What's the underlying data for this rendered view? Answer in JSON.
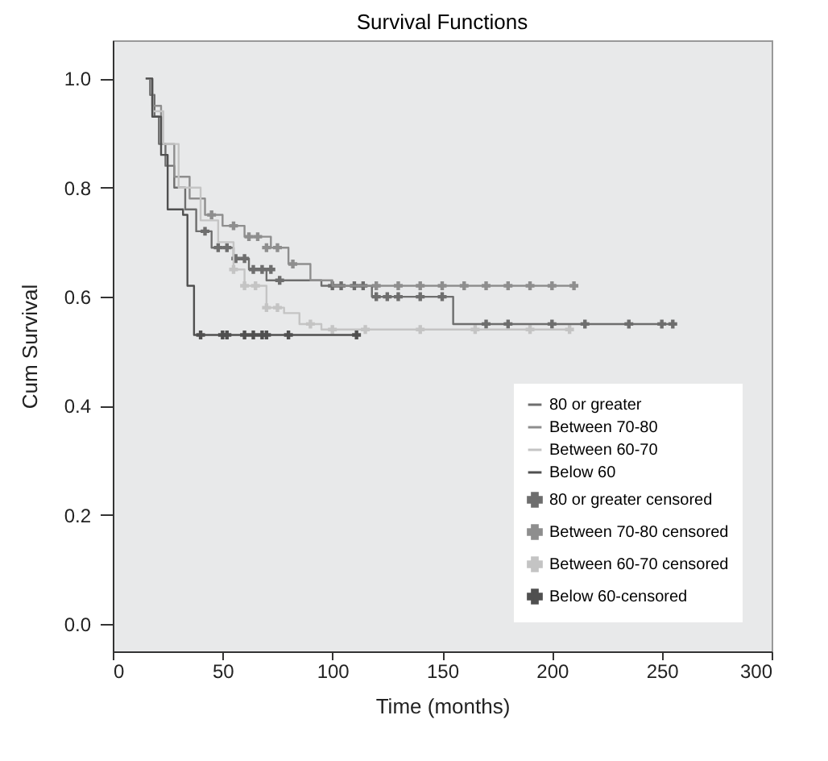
{
  "chart_data": {
    "type": "step",
    "title": "Survival Functions",
    "xlabel": "Time (months)",
    "ylabel": "Cum Survival",
    "xlim": [
      0,
      300
    ],
    "xticks": [
      0,
      50,
      100,
      150,
      200,
      250,
      300
    ],
    "ylim": [
      -0.05,
      1.07
    ],
    "yticks": [
      {
        "value": 0,
        "label": "0.0"
      },
      {
        "value": 0.2,
        "label": "0.2"
      },
      {
        "value": 0.4,
        "label": "0.4"
      },
      {
        "value": 0.6,
        "label": "0.6"
      },
      {
        "value": 0.8,
        "label": "0.8"
      },
      {
        "value": 1,
        "label": "1.0"
      }
    ],
    "legend": "bottom right",
    "grid": false,
    "series": [
      {
        "name": "80 or greater",
        "color": "#6e6e6e",
        "x": [
          15,
          17,
          19,
          21,
          24,
          28,
          33,
          38,
          45,
          55,
          62,
          70,
          95,
          118,
          155,
          255
        ],
        "values": [
          1.0,
          0.97,
          0.93,
          0.88,
          0.84,
          0.8,
          0.76,
          0.72,
          0.69,
          0.67,
          0.65,
          0.63,
          0.62,
          0.6,
          0.55,
          0.55
        ]
      },
      {
        "name": "Between 70-80",
        "color": "#8e8e8e",
        "x": [
          15,
          18,
          22,
          28,
          35,
          42,
          50,
          60,
          72,
          80,
          90,
          100,
          210
        ],
        "values": [
          1.0,
          0.95,
          0.88,
          0.82,
          0.78,
          0.75,
          0.73,
          0.71,
          0.69,
          0.66,
          0.63,
          0.62,
          0.62
        ]
      },
      {
        "name": "Between 60-70",
        "color": "#c4c4c4",
        "x": [
          15,
          18,
          23,
          30,
          40,
          48,
          55,
          60,
          70,
          78,
          85,
          95,
          208
        ],
        "values": [
          1.0,
          0.94,
          0.88,
          0.8,
          0.74,
          0.7,
          0.65,
          0.62,
          0.58,
          0.57,
          0.55,
          0.54,
          0.54
        ]
      },
      {
        "name": "Below 60",
        "color": "#505050",
        "x": [
          15,
          18,
          22,
          25,
          32,
          34,
          37,
          111
        ],
        "values": [
          1.0,
          0.93,
          0.86,
          0.76,
          0.75,
          0.62,
          0.53,
          0.53
        ]
      },
      {
        "name": "80 or greater censored",
        "type": "scatter",
        "marker": "cross",
        "color": "#6e6e6e",
        "x": [
          42,
          48,
          52,
          56,
          60,
          64,
          68,
          72,
          76,
          100,
          104,
          110,
          114,
          120,
          125,
          130,
          140,
          150,
          170,
          180,
          200,
          215,
          235,
          250,
          255
        ],
        "values": [
          0.72,
          0.69,
          0.69,
          0.67,
          0.67,
          0.65,
          0.65,
          0.65,
          0.63,
          0.62,
          0.62,
          0.62,
          0.62,
          0.6,
          0.6,
          0.6,
          0.6,
          0.6,
          0.55,
          0.55,
          0.55,
          0.55,
          0.55,
          0.55,
          0.55
        ]
      },
      {
        "name": "Between 70-80 censored",
        "type": "scatter",
        "marker": "cross",
        "color": "#8e8e8e",
        "x": [
          45,
          55,
          62,
          66,
          70,
          75,
          82,
          120,
          130,
          140,
          150,
          160,
          170,
          180,
          190,
          200,
          210
        ],
        "values": [
          0.75,
          0.73,
          0.71,
          0.71,
          0.69,
          0.69,
          0.66,
          0.62,
          0.62,
          0.62,
          0.62,
          0.62,
          0.62,
          0.62,
          0.62,
          0.62,
          0.62
        ]
      },
      {
        "name": "Between 60-70 censored",
        "type": "scatter",
        "marker": "cross",
        "color": "#c4c4c4",
        "x": [
          55,
          60,
          65,
          70,
          75,
          90,
          100,
          115,
          140,
          165,
          190,
          208
        ],
        "values": [
          0.65,
          0.62,
          0.62,
          0.58,
          0.58,
          0.55,
          0.54,
          0.54,
          0.54,
          0.54,
          0.54,
          0.54
        ]
      },
      {
        "name": "Below 60-censored",
        "type": "scatter",
        "marker": "cross",
        "color": "#505050",
        "x": [
          40,
          50,
          52,
          60,
          64,
          68,
          70,
          80,
          111
        ],
        "values": [
          0.53,
          0.53,
          0.53,
          0.53,
          0.53,
          0.53,
          0.53,
          0.53,
          0.53
        ]
      }
    ]
  }
}
